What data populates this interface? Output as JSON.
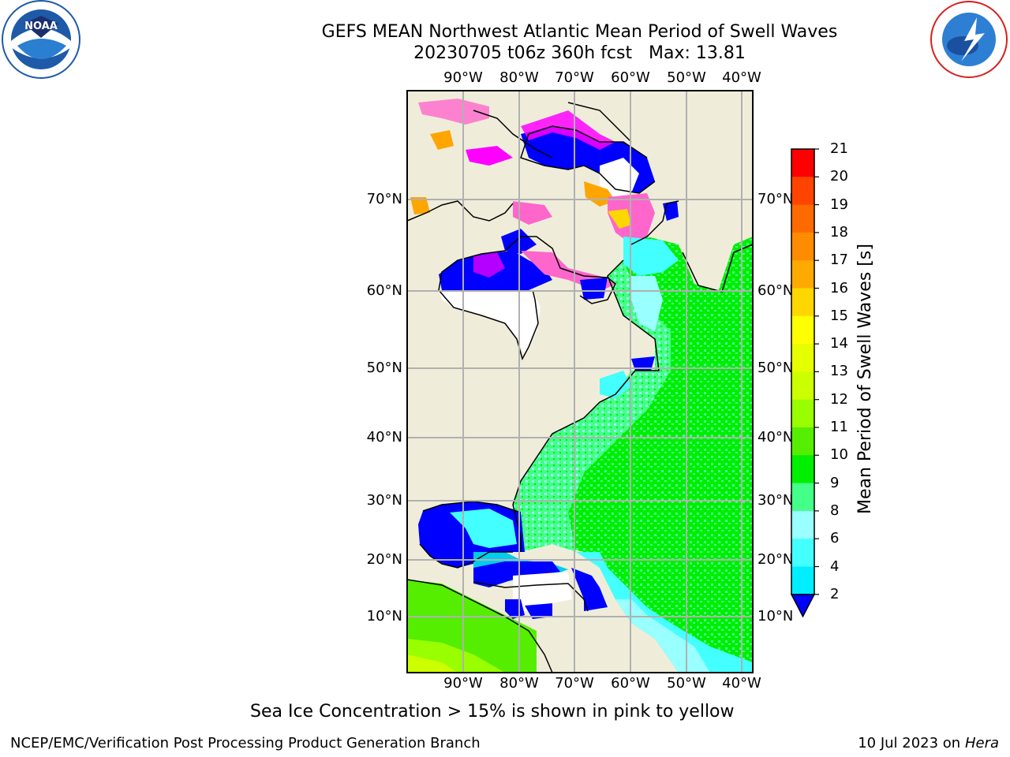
{
  "header": {
    "title": "GEFS MEAN Northwest Atlantic Mean Period of Swell Waves",
    "subtitle": "20230705 t06z 360h fcst   Max: 13.81"
  },
  "logos": {
    "left": {
      "name": "NOAA",
      "ring_text": "NATIONAL OCEANIC AND ATMOSPHERIC ADMINISTRATION · U.S. DEPARTMENT OF COMMERCE",
      "color": "#1e5aa8"
    },
    "right": {
      "name": "NATIONAL WEATHER SERVICE",
      "color": "#d81e1e"
    }
  },
  "map": {
    "longitude_labels": [
      "90°W",
      "80°W",
      "70°W",
      "60°W",
      "50°W",
      "40°W"
    ],
    "latitude_labels": [
      "70°N",
      "60°N",
      "50°N",
      "40°N",
      "30°N",
      "20°N",
      "10°N"
    ],
    "land_color": "#efedda",
    "grid_color": "#b0b0b0",
    "ice_colors": [
      "#ff00ff",
      "#ff66cc",
      "#ffa500",
      "#ffd700"
    ]
  },
  "colorbar": {
    "label": "Mean Period of Swell Waves [s]",
    "ticks": [
      "21",
      "20",
      "19",
      "18",
      "17",
      "16",
      "15",
      "14",
      "13",
      "12",
      "11",
      "10",
      "9",
      "8",
      "6",
      "4",
      "2"
    ],
    "colors": [
      "#ff0000",
      "#ff4400",
      "#ff6a00",
      "#ff8c00",
      "#ffaa00",
      "#ffd700",
      "#ffff00",
      "#e6ff00",
      "#ccff00",
      "#99ff00",
      "#55ee00",
      "#00ee00",
      "#44ff88",
      "#99ffff",
      "#44ffff",
      "#00eeff",
      "#0099ff",
      "#0000ff"
    ]
  },
  "caption": "Sea Ice Concentration > 15% is shown in pink to yellow",
  "footer": {
    "left": "NCEP/EMC/Verification Post Processing Product Generation Branch",
    "right_prefix": "10 Jul 2023 on ",
    "right_host": "Hera"
  }
}
